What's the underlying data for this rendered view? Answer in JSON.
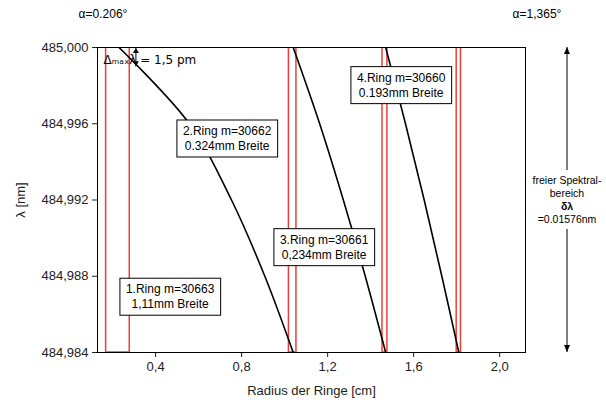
{
  "chart_data": {
    "type": "line",
    "x_label": "Radius der Ringe [cm]",
    "y_label": "λ [nm]",
    "xlim": [
      0.13,
      2.12
    ],
    "ylim": [
      484.984,
      485.0
    ],
    "xticks": [
      {
        "value": 0.4,
        "label": "0,4"
      },
      {
        "value": 0.8,
        "label": "0,8"
      },
      {
        "value": 1.2,
        "label": "1,2"
      },
      {
        "value": 1.6,
        "label": "1,6"
      },
      {
        "value": 2.0,
        "label": "2,0"
      }
    ],
    "yticks": [
      {
        "value": 484.984,
        "label": "484,984"
      },
      {
        "value": 484.988,
        "label": "484,988"
      },
      {
        "value": 484.992,
        "label": "484,992"
      },
      {
        "value": 484.996,
        "label": "484,996"
      },
      {
        "value": 485.0,
        "label": "485,000"
      }
    ],
    "series": [
      {
        "color": "#000000",
        "x": [
          0.23,
          0.557,
          0.753,
          0.908,
          1.04
        ],
        "values": [
          485.0,
          484.996,
          484.992,
          484.988,
          484.984
        ]
      },
      {
        "color": "#000000",
        "x": [
          1.04,
          1.163,
          1.273,
          1.375,
          1.47
        ],
        "values": [
          485.0,
          484.996,
          484.992,
          484.988,
          484.984
        ]
      },
      {
        "color": "#000000",
        "x": [
          1.47,
          1.562,
          1.649,
          1.731,
          1.81
        ],
        "values": [
          485.0,
          484.996,
          484.992,
          484.988,
          484.984
        ]
      }
    ],
    "bands": {
      "color": "#e8413c",
      "ranges": [
        [
          0.17,
          0.28
        ],
        [
          1.02,
          1.055
        ],
        [
          1.455,
          1.478
        ],
        [
          1.8,
          1.82
        ]
      ]
    },
    "annotations": [
      {
        "lines": [
          "1.Ring m=30663",
          "1,11mm Breite"
        ],
        "x": 0.47,
        "y": 484.9869
      },
      {
        "lines": [
          "2.Ring m=30662",
          "0.324mm Breite"
        ],
        "x": 0.735,
        "y": 484.9952
      },
      {
        "lines": [
          "3.Ring m=30661",
          "0,234mm Breite"
        ],
        "x": 1.186,
        "y": 484.9895
      },
      {
        "lines": [
          "4.Ring m=30660",
          "0.193mm Breite"
        ],
        "x": 1.544,
        "y": 484.998
      }
    ],
    "delta_annotation": {
      "text": "Δₘₐₓλ = 1,5 pm",
      "x": 0.376,
      "y": 484.9993
    },
    "corner_labels": {
      "left": "α=0.206°",
      "right": "α=1,365°"
    },
    "side_note": {
      "lines": [
        "freier Spektral-",
        "bereich",
        "δλ",
        "=0.01576nm"
      ]
    }
  }
}
